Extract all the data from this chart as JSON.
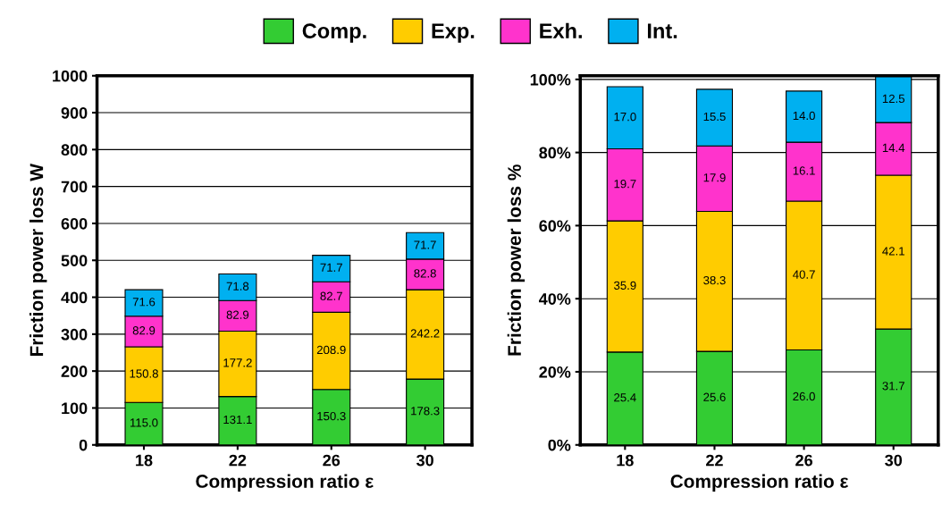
{
  "chart_data": [
    {
      "type": "bar",
      "stacked": true,
      "xlabel": "Compression ratio ε",
      "ylabel": "Friction power loss W",
      "categories": [
        "18",
        "22",
        "26",
        "30"
      ],
      "ylim": [
        0,
        1000
      ],
      "yticks": [
        0,
        100,
        200,
        300,
        400,
        500,
        600,
        700,
        800,
        900,
        1000
      ],
      "grid": "y",
      "legend": "top",
      "series": [
        {
          "name": "Comp.",
          "color": "#33cc33",
          "values": [
            115.0,
            131.1,
            150.3,
            178.3
          ],
          "value_labels": [
            "115.0",
            "131.1",
            "150.3",
            "178.3"
          ]
        },
        {
          "name": "Exp.",
          "color": "#ffcc00",
          "values": [
            150.8,
            177.2,
            208.9,
            242.2
          ],
          "value_labels": [
            "150.8",
            "177.2",
            "208.9",
            "242.2"
          ]
        },
        {
          "name": "Exh.",
          "color": "#ff33cc",
          "values": [
            82.9,
            82.9,
            82.7,
            82.8
          ],
          "value_labels": [
            "82.9",
            "82.9",
            "82.7",
            "82.8"
          ]
        },
        {
          "name": "Int.",
          "color": "#00b0f0",
          "values": [
            71.6,
            71.8,
            71.7,
            71.7
          ],
          "value_labels": [
            "71.6",
            "71.8",
            "71.7",
            "71.7"
          ]
        }
      ]
    },
    {
      "type": "bar",
      "stacked": true,
      "xlabel": "Compression ratio ε",
      "ylabel": "Friction power loss %",
      "categories": [
        "18",
        "22",
        "26",
        "30"
      ],
      "ylim": [
        0,
        101
      ],
      "yticks": [
        {
          "value": 0,
          "label": "0%"
        },
        {
          "value": 20,
          "label": "20%"
        },
        {
          "value": 40,
          "label": "40%"
        },
        {
          "value": 60,
          "label": "60%"
        },
        {
          "value": 80,
          "label": "80%"
        },
        {
          "value": 100,
          "label": "100%"
        }
      ],
      "grid": "y",
      "legend": "top",
      "series": [
        {
          "name": "Comp.",
          "color": "#33cc33",
          "values": [
            25.4,
            25.6,
            26.0,
            31.7
          ],
          "value_labels": [
            "25.4",
            "25.6",
            "26.0",
            "31.7"
          ]
        },
        {
          "name": "Exp.",
          "color": "#ffcc00",
          "values": [
            35.9,
            38.3,
            40.7,
            42.1
          ],
          "value_labels": [
            "35.9",
            "38.3",
            "40.7",
            "42.1"
          ]
        },
        {
          "name": "Exh.",
          "color": "#ff33cc",
          "values": [
            19.7,
            17.9,
            16.1,
            14.4
          ],
          "value_labels": [
            "19.7",
            "17.9",
            "16.1",
            "14.4"
          ]
        },
        {
          "name": "Int.",
          "color": "#00b0f0",
          "values": [
            17.0,
            15.5,
            14.0,
            12.5
          ],
          "value_labels": [
            "17.0",
            "15.5",
            "14.0",
            "12.5"
          ]
        }
      ]
    }
  ]
}
